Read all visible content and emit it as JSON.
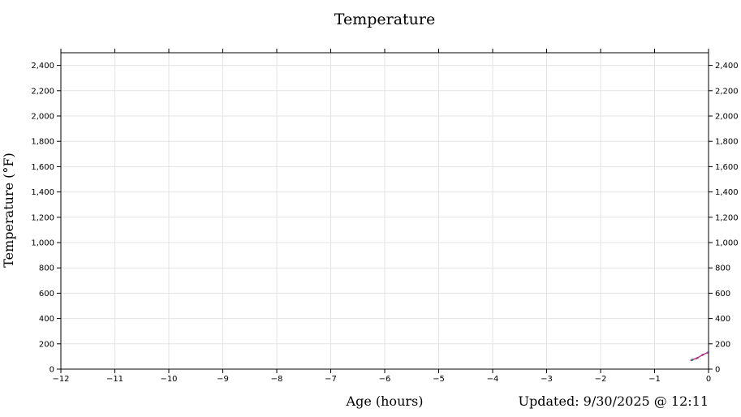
{
  "chart_data": {
    "type": "line",
    "title": "Temperature",
    "xlabel": "Age (hours)",
    "ylabel": "Temperature (°F)",
    "footer": "Updated: 9/30/2025 @ 12:11",
    "xlim": [
      -12,
      0
    ],
    "ylim": [
      0,
      2500
    ],
    "x_ticks": [
      -12,
      -11,
      -10,
      -9,
      -8,
      -7,
      -6,
      -5,
      -4,
      -3,
      -2,
      -1,
      0
    ],
    "x_tick_labels": [
      "−12",
      "−11",
      "−10",
      "−9",
      "−8",
      "−7",
      "−6",
      "−5",
      "−4",
      "−3",
      "−2",
      "−1",
      "0"
    ],
    "y_ticks": [
      0,
      200,
      400,
      600,
      800,
      1000,
      1200,
      1400,
      1600,
      1800,
      2000,
      2200,
      2400
    ],
    "y_tick_labels": [
      "0",
      "200",
      "400",
      "600",
      "800",
      "1,000",
      "1,200",
      "1,400",
      "1,600",
      "1,800",
      "2,000",
      "2,200",
      "2,400"
    ],
    "grid": true,
    "series": [
      {
        "color": "#3b5bb0",
        "x": [
          -0.3,
          -0.2,
          -0.1,
          0.0
        ],
        "y": [
          75,
          90,
          115,
          135
        ]
      },
      {
        "color": "#c0307a",
        "x": [
          -0.32,
          -0.22,
          -0.12,
          -0.02
        ],
        "y": [
          70,
          85,
          110,
          130
        ]
      },
      {
        "color": "#2f8f5b",
        "x": [
          -0.3
        ],
        "y": [
          72
        ]
      }
    ]
  }
}
